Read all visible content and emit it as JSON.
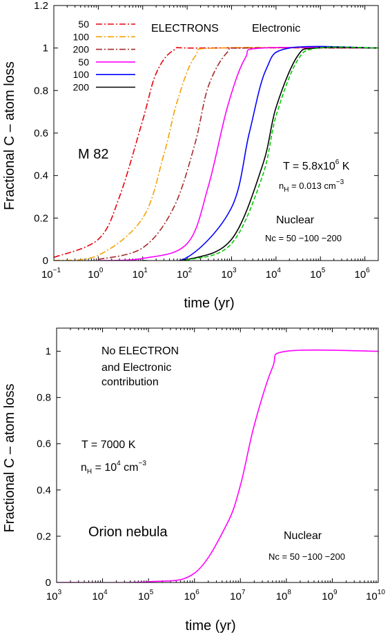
{
  "chart_data": [
    {
      "type": "line",
      "panel": "top",
      "xlabel": "time  (yr)",
      "ylabel": "Fractional C – atom loss",
      "xscale": "log",
      "xlim": [
        0.1,
        2000000
      ],
      "ylim": [
        0,
        1.2
      ],
      "yticks": [
        "0",
        "0.2",
        "0.4",
        "0.6",
        "0.8",
        "1",
        "1.2"
      ],
      "xtick_exponents": [
        "−1",
        "0",
        "1",
        "2",
        "3",
        "4",
        "5",
        "6"
      ],
      "legend_position": "top-left",
      "legend_headers": [
        "ELECTRONS",
        "Electronic"
      ],
      "annotations": {
        "galaxy": "M 82",
        "temperature": "T = 5.8x10",
        "temperature_exp": "6",
        "temperature_unit": " K",
        "density_n": "n",
        "density_sub": "H",
        "density_value": " = 0.013 cm",
        "density_exp": "−3",
        "nuclear": "Nuclear",
        "nc": "Nc = 50 −100 −200"
      },
      "series": [
        {
          "name": "50",
          "color": "#e8000b",
          "style": "dashdot",
          "group": "ELECTRONS",
          "points": [
            [
              0.1,
              0.015
            ],
            [
              1,
              0.1
            ],
            [
              3,
              0.3
            ],
            [
              10,
              0.66
            ],
            [
              20,
              0.88
            ],
            [
              50,
              0.99
            ],
            [
              200,
              1
            ],
            [
              2000000,
              1
            ]
          ]
        },
        {
          "name": "100",
          "color": "#f5a100",
          "style": "dashdot",
          "group": "ELECTRONS",
          "points": [
            [
              0.1,
              0.0
            ],
            [
              1,
              0.025
            ],
            [
              10,
              0.2
            ],
            [
              30,
              0.5
            ],
            [
              60,
              0.75
            ],
            [
              150,
              0.96
            ],
            [
              500,
              1
            ],
            [
              2000000,
              1
            ]
          ]
        },
        {
          "name": "200",
          "color": "#a52a2a",
          "style": "dashdot",
          "group": "ELECTRONS",
          "points": [
            [
              1,
              0.005
            ],
            [
              10,
              0.06
            ],
            [
              50,
              0.25
            ],
            [
              150,
              0.55
            ],
            [
              300,
              0.82
            ],
            [
              800,
              0.98
            ],
            [
              2000,
              1
            ],
            [
              2000000,
              1
            ]
          ]
        },
        {
          "name": "50",
          "color": "#ff00ff",
          "style": "solid",
          "group": "Electronic",
          "points": [
            [
              1,
              0.0
            ],
            [
              10,
              0.01
            ],
            [
              100,
              0.08
            ],
            [
              300,
              0.35
            ],
            [
              800,
              0.72
            ],
            [
              2000,
              0.95
            ],
            [
              5000,
              1
            ],
            [
              2000000,
              1
            ]
          ]
        },
        {
          "name": "100",
          "color": "#0000ff",
          "style": "solid",
          "group": "Electronic",
          "points": [
            [
              10,
              0.0
            ],
            [
              100,
              0.015
            ],
            [
              1000,
              0.25
            ],
            [
              2500,
              0.6
            ],
            [
              6000,
              0.9
            ],
            [
              20000,
              1
            ],
            [
              2000000,
              1
            ]
          ]
        },
        {
          "name": "200",
          "color": "#000000",
          "style": "solid",
          "group": "Electronic",
          "points": [
            [
              10,
              0.0
            ],
            [
              100,
              0.005
            ],
            [
              1000,
              0.1
            ],
            [
              5000,
              0.45
            ],
            [
              10000,
              0.72
            ],
            [
              30000,
              0.96
            ],
            [
              80000,
              1
            ],
            [
              2000000,
              1
            ]
          ]
        },
        {
          "color": "#00cc00",
          "style": "dashed",
          "group": "Nuclear",
          "points": [
            [
              10,
              0.0
            ],
            [
              100,
              0.003
            ],
            [
              1000,
              0.08
            ],
            [
              5000,
              0.4
            ],
            [
              10000,
              0.68
            ],
            [
              30000,
              0.94
            ],
            [
              90000,
              1
            ],
            [
              2000000,
              1
            ]
          ]
        }
      ]
    },
    {
      "type": "line",
      "panel": "bottom",
      "xlabel": "time  (yr)",
      "ylabel": "Fractional C – atom loss",
      "xscale": "log",
      "xlim": [
        1000,
        10000000000
      ],
      "ylim": [
        0,
        1.1
      ],
      "yticks": [
        "0",
        "0.2",
        "0.4",
        "0.6",
        "0.8",
        "1"
      ],
      "xtick_exponents": [
        "3",
        "4",
        "5",
        "6",
        "7",
        "8",
        "9",
        "10"
      ],
      "annotations": {
        "note_line1": "No ELECTRON",
        "note_line2": "and Electronic",
        "note_line3": "contribution",
        "temperature": "T = 7000 K",
        "density_n": "n",
        "density_sub": "H",
        "density_value": " = 10",
        "density_exp": "4",
        "density_unit": " cm",
        "density_unit_exp": "−3",
        "object": "Orion nebula",
        "nuclear": "Nuclear",
        "nc": "Nc = 50 −100 −200"
      },
      "series": [
        {
          "color": "#ff00ff",
          "style": "solid",
          "points": [
            [
              1000,
              0
            ],
            [
              100000,
              0.003
            ],
            [
              1000000,
              0.04
            ],
            [
              5000000,
              0.25
            ],
            [
              10000000,
              0.42
            ],
            [
              20000000,
              0.68
            ],
            [
              50000000,
              0.93
            ],
            [
              100000000,
              1
            ],
            [
              10000000000,
              1
            ]
          ]
        }
      ]
    }
  ]
}
